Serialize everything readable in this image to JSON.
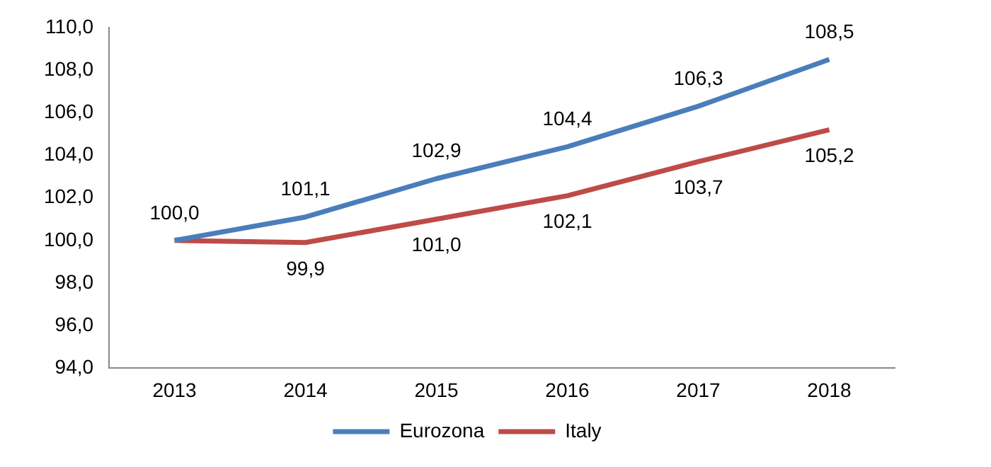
{
  "chart_data": {
    "type": "line",
    "categories": [
      "2013",
      "2014",
      "2015",
      "2016",
      "2017",
      "2018"
    ],
    "series": [
      {
        "name": "Eurozona",
        "color": "#4a7ebb",
        "values": [
          100.0,
          101.1,
          102.9,
          104.4,
          106.3,
          108.5
        ],
        "value_labels": [
          "100,0",
          "101,1",
          "102,9",
          "104,4",
          "106,3",
          "108,5"
        ]
      },
      {
        "name": "Italy",
        "color": "#be4b48",
        "values": [
          100.0,
          99.9,
          101.0,
          102.1,
          103.7,
          105.2
        ],
        "value_labels": [
          null,
          "99,9",
          "101,0",
          "102,1",
          "103,7",
          "105,2"
        ]
      }
    ],
    "ylim": [
      94,
      110
    ],
    "yticks": [
      {
        "value": 94,
        "label": "94,0"
      },
      {
        "value": 96,
        "label": "96,0"
      },
      {
        "value": 98,
        "label": "98,0"
      },
      {
        "value": 100,
        "label": "100,0"
      },
      {
        "value": 102,
        "label": "102,0"
      },
      {
        "value": 104,
        "label": "104,0"
      },
      {
        "value": 106,
        "label": "106,0"
      },
      {
        "value": 108,
        "label": "108,0"
      },
      {
        "value": 110,
        "label": "110,0"
      }
    ],
    "grid": false,
    "legend": "bottom",
    "marker": "none",
    "line_style": "solid"
  }
}
